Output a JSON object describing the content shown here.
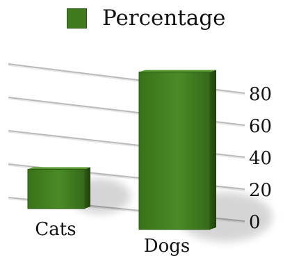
{
  "chart_data": {
    "type": "bar",
    "categories": [
      "Cats",
      "Dogs"
    ],
    "series": [
      {
        "name": "Percentage",
        "values": [
          20,
          80
        ],
        "color": "#3f7a1f"
      }
    ],
    "ylim": [
      0,
      80
    ],
    "yticks": [
      0,
      20,
      40,
      60,
      80
    ],
    "grid": true,
    "legend_position": "top",
    "style": "3d"
  }
}
